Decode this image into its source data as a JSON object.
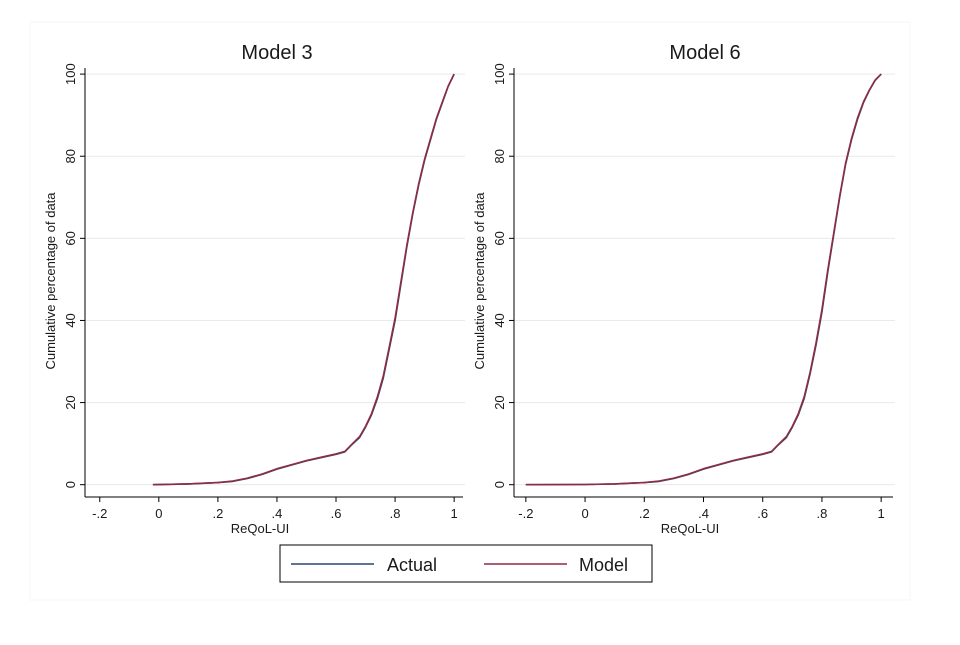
{
  "colors": {
    "actual": "#2c4373",
    "model": "#8e2c43",
    "grid": "#eaeaea",
    "axis": "#000000",
    "background": "#ffffff"
  },
  "legend": {
    "placement": "bottom",
    "items": [
      {
        "label": "Actual",
        "color": "#2c4373"
      },
      {
        "label": "Model",
        "color": "#8e2c43"
      }
    ]
  },
  "chart_data": [
    {
      "type": "line",
      "title": "Model 3",
      "xlabel": "ReQoL-UI",
      "ylabel": "Cumulative percentage of data",
      "xlim": [
        -0.25,
        1.03
      ],
      "ylim": [
        -3,
        101
      ],
      "grid": true,
      "xticks": [
        {
          "value": -0.2,
          "label": "-.2"
        },
        {
          "value": 0,
          "label": "0"
        },
        {
          "value": 0.2,
          "label": ".2"
        },
        {
          "value": 0.4,
          "label": ".4"
        },
        {
          "value": 0.6,
          "label": ".6"
        },
        {
          "value": 0.8,
          "label": ".8"
        },
        {
          "value": 1,
          "label": "1"
        }
      ],
      "yticks": [
        {
          "value": 0,
          "label": "0"
        },
        {
          "value": 20,
          "label": "20"
        },
        {
          "value": 40,
          "label": "40"
        },
        {
          "value": 60,
          "label": "60"
        },
        {
          "value": 80,
          "label": "80"
        },
        {
          "value": 100,
          "label": "100"
        }
      ],
      "series": [
        {
          "name": "Actual",
          "color": "#2c4373",
          "x": [
            -0.02,
            0.1,
            0.2,
            0.25,
            0.3,
            0.35,
            0.4,
            0.45,
            0.5,
            0.55,
            0.6,
            0.63,
            0.65,
            0.68,
            0.7,
            0.72,
            0.74,
            0.76,
            0.78,
            0.8,
            0.82,
            0.84,
            0.86,
            0.88,
            0.9,
            0.92,
            0.94,
            0.96,
            0.98,
            1.0
          ],
          "y": [
            0,
            0.2,
            0.5,
            0.8,
            1.5,
            2.5,
            3.8,
            4.8,
            5.8,
            6.6,
            7.4,
            8.0,
            9.5,
            11.5,
            14.0,
            17.0,
            21.0,
            26.0,
            33.0,
            40.0,
            49.0,
            58.0,
            66.0,
            73.0,
            79.0,
            84.0,
            89.0,
            93.0,
            97.0,
            100.0
          ]
        },
        {
          "name": "Model",
          "color": "#8e2c43",
          "x": [
            -0.02,
            0.1,
            0.2,
            0.25,
            0.3,
            0.35,
            0.4,
            0.45,
            0.5,
            0.55,
            0.6,
            0.63,
            0.65,
            0.68,
            0.7,
            0.72,
            0.74,
            0.76,
            0.78,
            0.8,
            0.82,
            0.84,
            0.86,
            0.88,
            0.9,
            0.92,
            0.94,
            0.96,
            0.98,
            1.0
          ],
          "y": [
            0,
            0.2,
            0.5,
            0.9,
            1.6,
            2.6,
            3.9,
            4.9,
            5.9,
            6.7,
            7.5,
            8.1,
            9.6,
            11.7,
            14.2,
            17.3,
            21.4,
            26.5,
            33.5,
            40.6,
            49.5,
            58.4,
            66.3,
            73.3,
            79.3,
            84.3,
            89.2,
            93.2,
            97.1,
            100.0
          ]
        }
      ]
    },
    {
      "type": "line",
      "title": "Model 6",
      "xlabel": "ReQoL-UI",
      "ylabel": "Cumulative percentage of data",
      "xlim": [
        -0.24,
        1.04
      ],
      "ylim": [
        -3,
        101
      ],
      "grid": true,
      "xticks": [
        {
          "value": -0.2,
          "label": "-.2"
        },
        {
          "value": 0,
          "label": "0"
        },
        {
          "value": 0.2,
          "label": ".2"
        },
        {
          "value": 0.4,
          "label": ".4"
        },
        {
          "value": 0.6,
          "label": ".6"
        },
        {
          "value": 0.8,
          "label": ".8"
        },
        {
          "value": 1,
          "label": "1"
        }
      ],
      "yticks": [
        {
          "value": 0,
          "label": "0"
        },
        {
          "value": 20,
          "label": "20"
        },
        {
          "value": 40,
          "label": "40"
        },
        {
          "value": 60,
          "label": "60"
        },
        {
          "value": 80,
          "label": "80"
        },
        {
          "value": 100,
          "label": "100"
        }
      ],
      "series": [
        {
          "name": "Actual",
          "color": "#2c4373",
          "x": [
            -0.2,
            0.0,
            0.1,
            0.2,
            0.25,
            0.3,
            0.35,
            0.4,
            0.45,
            0.5,
            0.55,
            0.6,
            0.63,
            0.65,
            0.68,
            0.7,
            0.72,
            0.74,
            0.76,
            0.78,
            0.8,
            0.82,
            0.84,
            0.86,
            0.88,
            0.9,
            0.92,
            0.94,
            0.96,
            0.98,
            1.0
          ],
          "y": [
            0,
            0.05,
            0.2,
            0.5,
            0.8,
            1.5,
            2.5,
            3.8,
            4.8,
            5.8,
            6.6,
            7.4,
            8.0,
            9.5,
            11.5,
            14.0,
            17.0,
            21.0,
            27.0,
            34.0,
            42.0,
            52.0,
            61.0,
            70.0,
            78.0,
            84.0,
            89.0,
            93.0,
            96.0,
            98.5,
            100.0
          ]
        },
        {
          "name": "Model",
          "color": "#8e2c43",
          "x": [
            -0.2,
            0.0,
            0.1,
            0.2,
            0.25,
            0.3,
            0.35,
            0.4,
            0.45,
            0.5,
            0.55,
            0.6,
            0.63,
            0.65,
            0.68,
            0.7,
            0.72,
            0.74,
            0.76,
            0.78,
            0.8,
            0.82,
            0.84,
            0.86,
            0.88,
            0.9,
            0.92,
            0.94,
            0.96,
            0.98,
            1.0
          ],
          "y": [
            0,
            0.05,
            0.2,
            0.5,
            0.9,
            1.6,
            2.6,
            3.9,
            4.9,
            5.9,
            6.7,
            7.5,
            8.1,
            9.6,
            11.7,
            14.2,
            17.3,
            21.4,
            27.4,
            34.5,
            42.6,
            52.5,
            61.4,
            70.3,
            78.3,
            84.3,
            89.3,
            93.2,
            96.1,
            98.6,
            100.0
          ]
        }
      ]
    }
  ]
}
